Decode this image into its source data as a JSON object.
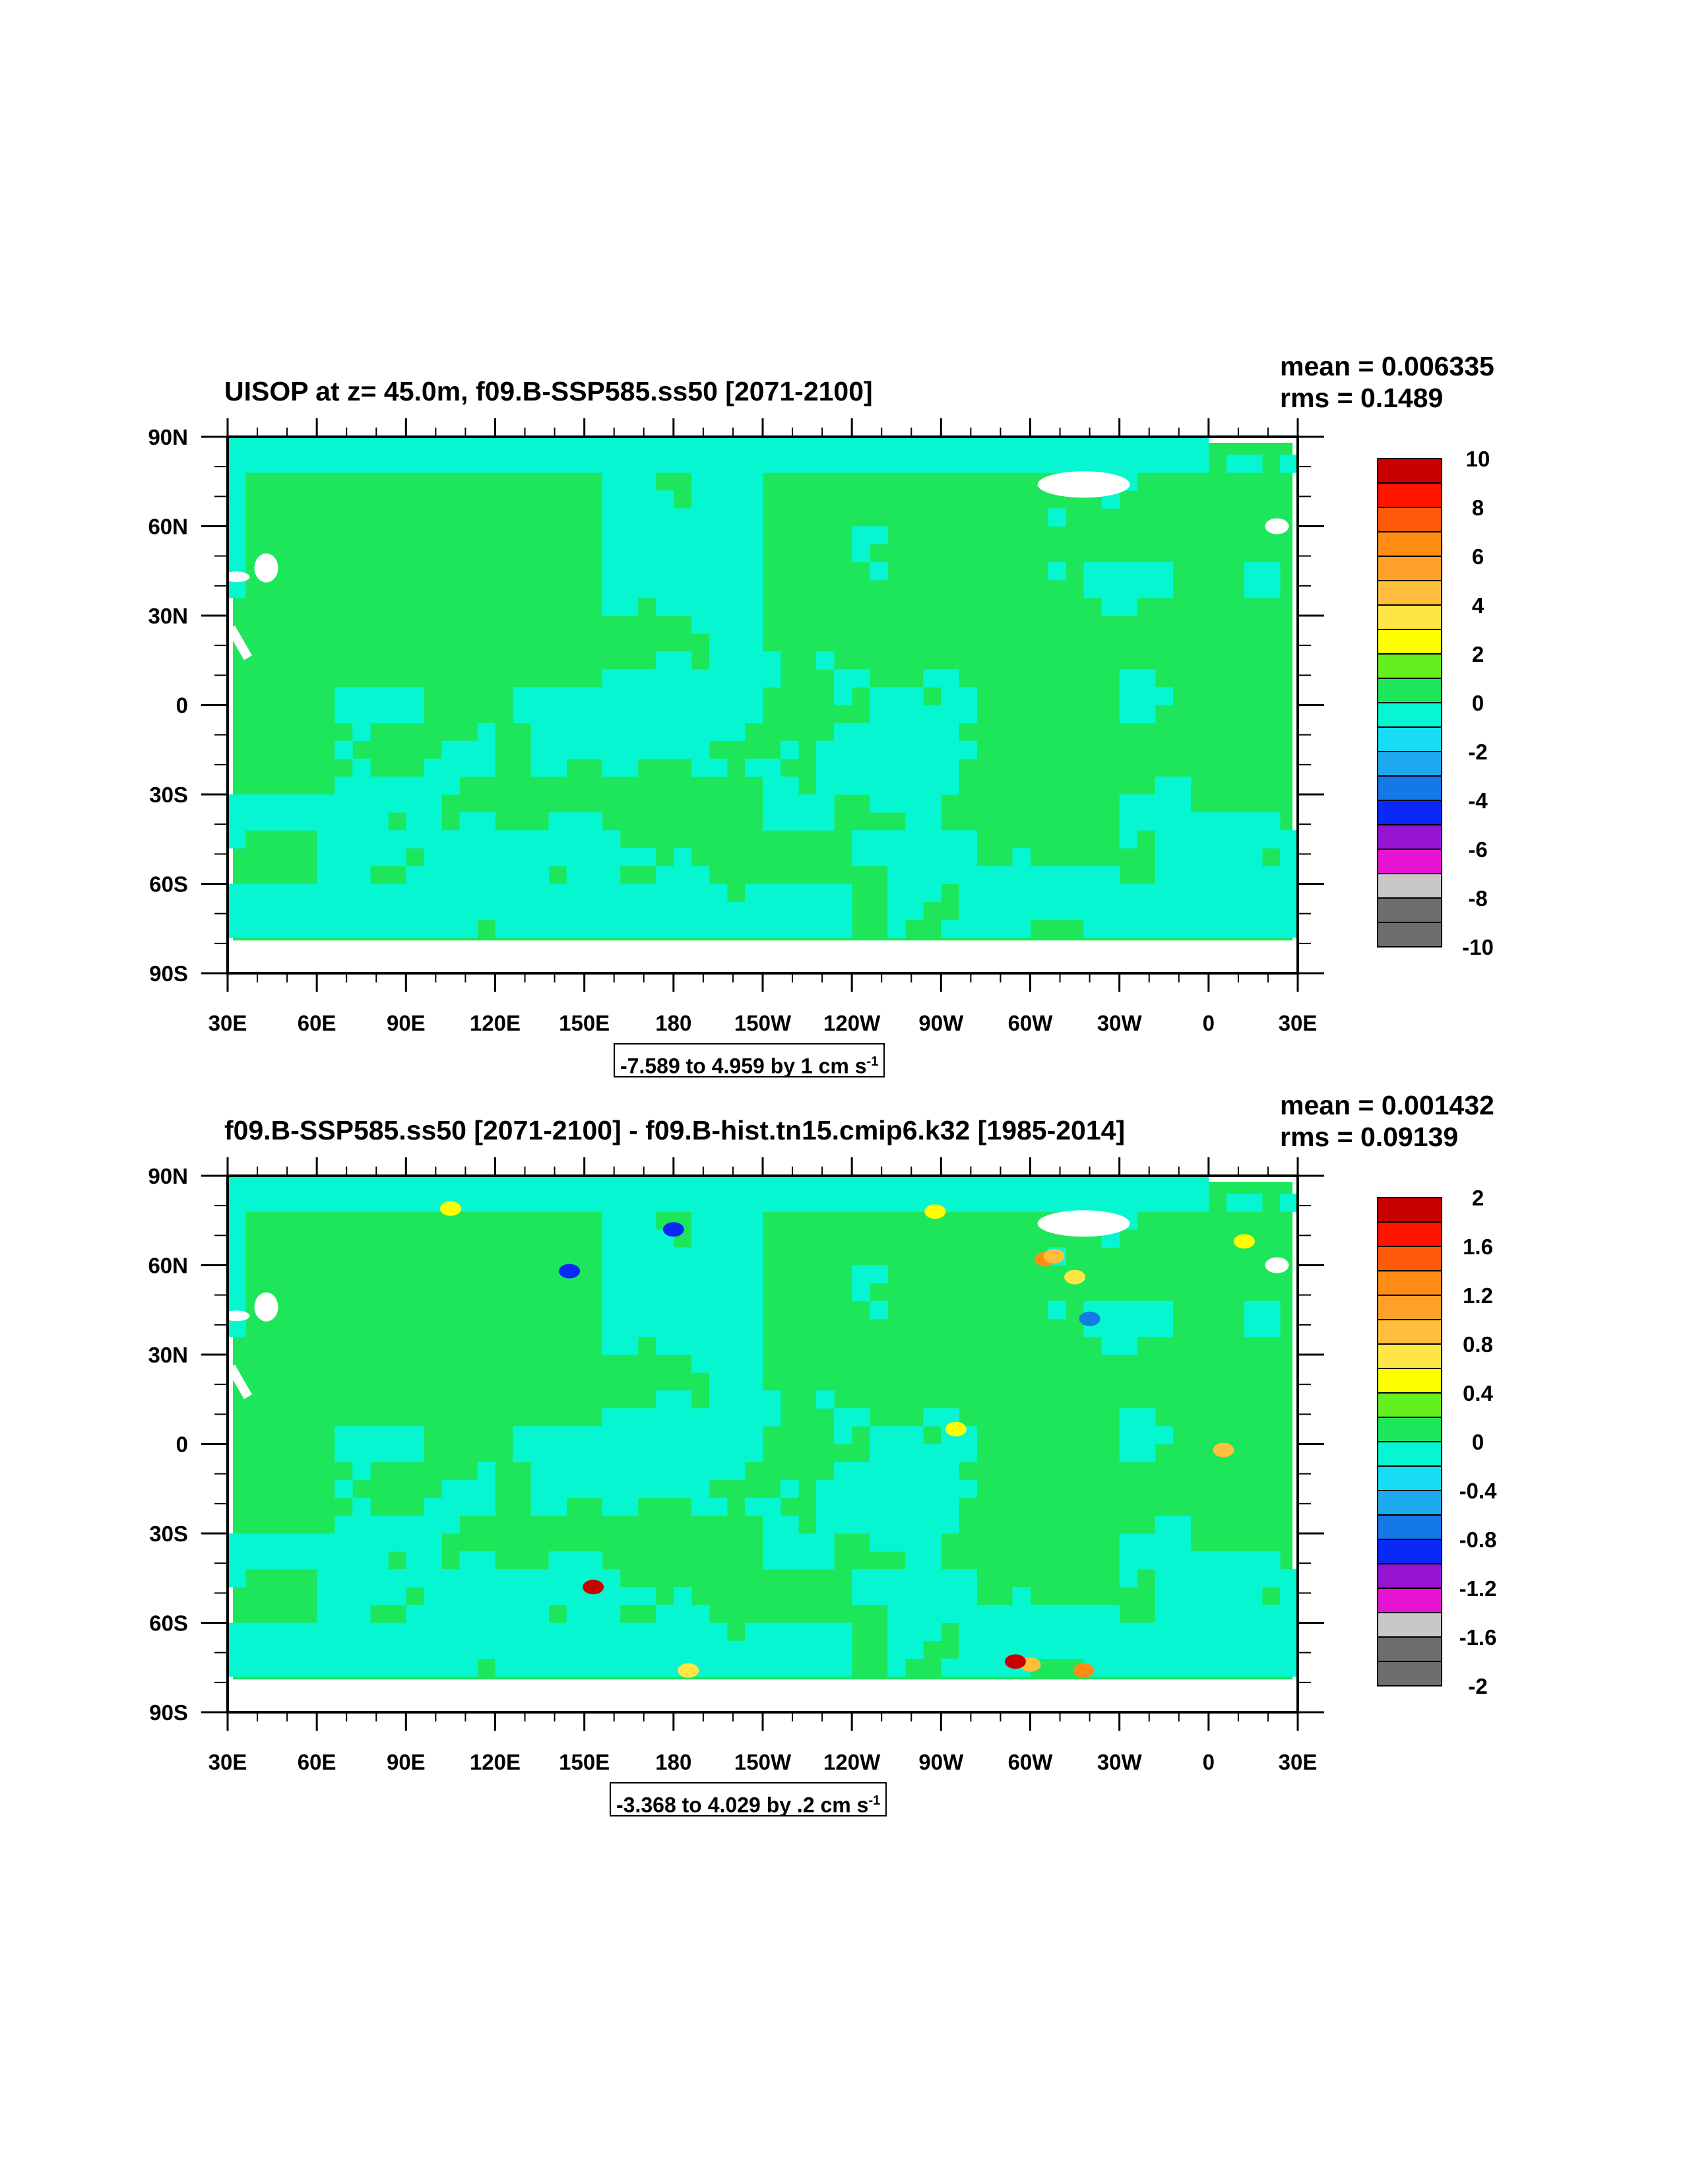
{
  "colors": {
    "land_zero_class": "#1ee65a",
    "ocean_negative_class": "#06f6d2",
    "missing": "#ffffff"
  },
  "palette": [
    "#6e6e6e",
    "#c8c8c8",
    "#e614d2",
    "#9614d2",
    "#0a28f6",
    "#1478e6",
    "#1eaaf0",
    "#18dcf4",
    "#06f6d2",
    "#1ee65a",
    "#64f01e",
    "#ffff00",
    "#ffe646",
    "#ffbe3c",
    "#ffa028",
    "#ff8c14",
    "#ff5a0a",
    "#ff1400",
    "#c80000"
  ],
  "chart_data": [
    {
      "type": "map",
      "title": "UISOP at z=  45.0m, f09.B-SSP585.ss50 [2071-2100]",
      "mean_label": "mean = 0.006335",
      "rms_label": "rms = 0.1489",
      "range_label": "-7.589 to 4.959 by 1 cm s",
      "range_unit_exp": "-1",
      "x_ticks": [
        "30E",
        "60E",
        "90E",
        "120E",
        "150E",
        "180",
        "150W",
        "120W",
        "90W",
        "60W",
        "30W",
        "0",
        "30E"
      ],
      "y_ticks": [
        "90N",
        "60N",
        "30N",
        "0",
        "30S",
        "60S",
        "90S"
      ],
      "lon_range": [
        30,
        390
      ],
      "lat_range": [
        -90,
        90
      ],
      "colorbar_levels": [
        -10,
        -9,
        -8,
        -7,
        -6,
        -5,
        -4,
        -3,
        -2,
        -1,
        0,
        1,
        2,
        3,
        4,
        5,
        6,
        7,
        8,
        9,
        10
      ],
      "colorbar_labels": [
        "10",
        "8",
        "6",
        "4",
        "2",
        "0",
        "-2",
        "-4",
        "-6",
        "-8",
        "-10"
      ],
      "hotspots": []
    },
    {
      "type": "map",
      "title": "f09.B-SSP585.ss50 [2071-2100] - f09.B-hist.tn15.cmip6.k32 [1985-2014]",
      "mean_label": "mean = 0.001432",
      "rms_label": "rms = 0.09139",
      "range_label": "-3.368 to 4.029 by .2 cm s",
      "range_unit_exp": "-1",
      "x_ticks": [
        "30E",
        "60E",
        "90E",
        "120E",
        "150E",
        "180",
        "150W",
        "120W",
        "90W",
        "60W",
        "30W",
        "0",
        "30E"
      ],
      "y_ticks": [
        "90N",
        "60N",
        "30N",
        "0",
        "30S",
        "60S",
        "90S"
      ],
      "lon_range": [
        30,
        390
      ],
      "lat_range": [
        -90,
        90
      ],
      "colorbar_levels": [
        -2,
        -1.8,
        -1.6,
        -1.4,
        -1.2,
        -1,
        -0.8,
        -0.6,
        -0.4,
        -0.2,
        0,
        0.2,
        0.4,
        0.6,
        0.8,
        1,
        1.2,
        1.4,
        1.6,
        1.8,
        2
      ],
      "colorbar_labels": [
        "2",
        "1.6",
        "1.2",
        "0.8",
        "0.4",
        "0",
        "-0.4",
        "-0.8",
        "-1.2",
        "-1.6",
        "-2"
      ],
      "hotspots": [
        {
          "lon": 305,
          "lat": 62,
          "value": 1.2
        },
        {
          "lon": 308,
          "lat": 63,
          "value": 0.8
        },
        {
          "lon": 315,
          "lat": 56,
          "value": 0.6
        },
        {
          "lon": 300,
          "lat": -74,
          "value": 0.8
        },
        {
          "lon": 318,
          "lat": -76,
          "value": 1.2
        },
        {
          "lon": 295,
          "lat": -73,
          "value": 1.8
        },
        {
          "lon": 185,
          "lat": -76,
          "value": 0.6
        },
        {
          "lon": 105,
          "lat": 79,
          "value": 0.5
        },
        {
          "lon": 153,
          "lat": -48,
          "value": 1.8
        },
        {
          "lon": 365,
          "lat": -2,
          "value": 0.8
        },
        {
          "lon": 320,
          "lat": 42,
          "value": -0.8
        },
        {
          "lon": 268,
          "lat": 78,
          "value": 0.4
        },
        {
          "lon": 180,
          "lat": 72,
          "value": -1.0
        },
        {
          "lon": 145,
          "lat": 58,
          "value": -1.0
        },
        {
          "lon": 372,
          "lat": 68,
          "value": 0.4
        },
        {
          "lon": 275,
          "lat": 5,
          "value": 0.4
        }
      ]
    }
  ]
}
